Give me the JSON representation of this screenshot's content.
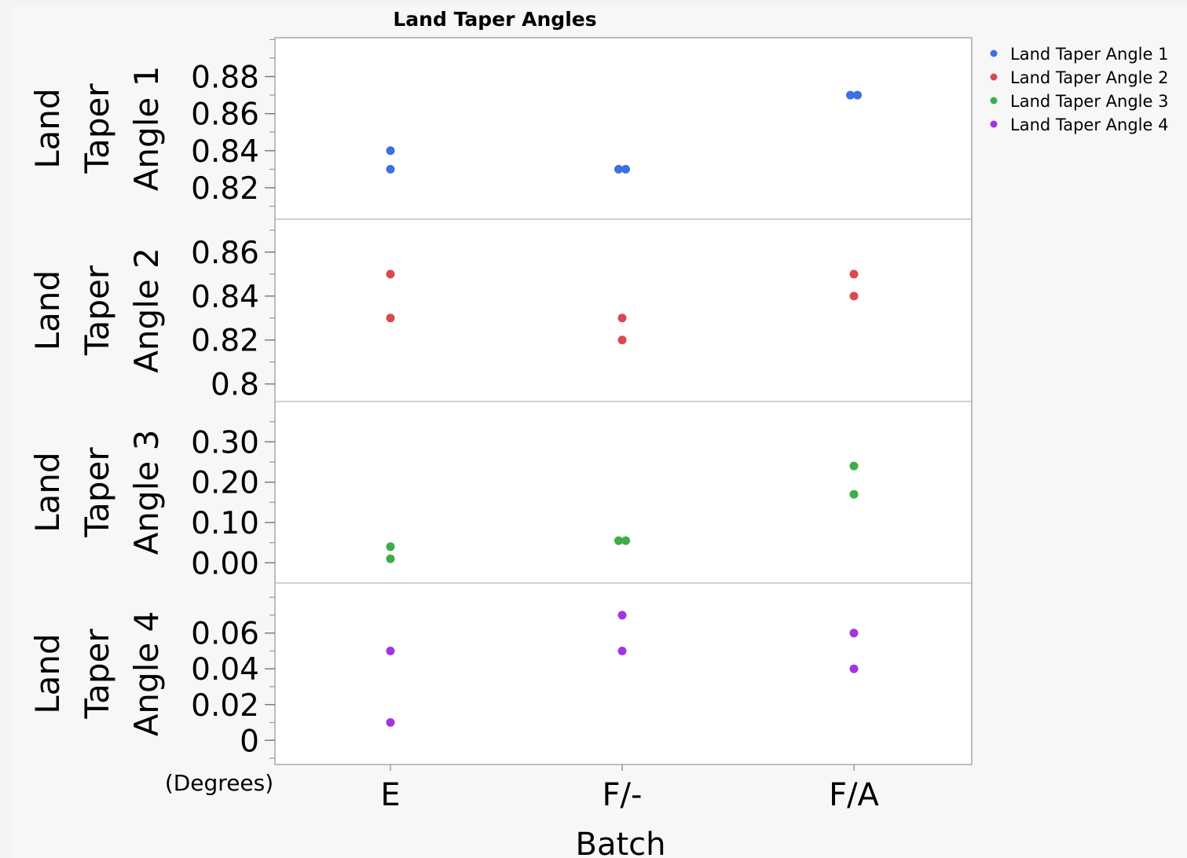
{
  "chart_data": {
    "type": "scatter",
    "title": "Land Taper Angles",
    "xlabel": "Batch",
    "categories": [
      "E",
      "F/-",
      "F/A"
    ],
    "y_unit_note": "(Degrees)",
    "grid": false,
    "legend_position": "top-right",
    "series": [
      {
        "name": "Land Taper Angle 1",
        "panel_label": [
          "Land",
          "Taper",
          "Angle 1"
        ],
        "color": "#3d70e0",
        "ylim": [
          0.803,
          0.901
        ],
        "yticks": [
          0.82,
          0.84,
          0.86,
          0.88
        ],
        "ytick_labels": [
          "0.82",
          "0.84",
          "0.86",
          "0.88"
        ],
        "points": [
          {
            "x": "E",
            "y": 0.84
          },
          {
            "x": "E",
            "y": 0.83
          },
          {
            "x": "F/-",
            "y": 0.83
          },
          {
            "x": "F/-",
            "y": 0.83
          },
          {
            "x": "F/A",
            "y": 0.87
          },
          {
            "x": "F/A",
            "y": 0.87
          }
        ]
      },
      {
        "name": "Land Taper Angle 2",
        "panel_label": [
          "Land",
          "Taper",
          "Angle 2"
        ],
        "color": "#d94a4f",
        "ylim": [
          0.792,
          0.875
        ],
        "yticks": [
          0.8,
          0.82,
          0.84,
          0.86
        ],
        "ytick_labels": [
          "0.8",
          "0.82",
          "0.84",
          "0.86"
        ],
        "points": [
          {
            "x": "E",
            "y": 0.85
          },
          {
            "x": "E",
            "y": 0.83
          },
          {
            "x": "F/-",
            "y": 0.83
          },
          {
            "x": "F/-",
            "y": 0.82
          },
          {
            "x": "F/A",
            "y": 0.85
          },
          {
            "x": "F/A",
            "y": 0.84
          }
        ]
      },
      {
        "name": "Land Taper Angle 3",
        "panel_label": [
          "Land",
          "Taper",
          "Angle 3"
        ],
        "color": "#3cae47",
        "ylim": [
          -0.05,
          0.4
        ],
        "yticks": [
          0.0,
          0.1,
          0.2,
          0.3
        ],
        "ytick_labels": [
          "0.00",
          "0.10",
          "0.20",
          "0.30"
        ],
        "points": [
          {
            "x": "E",
            "y": 0.04
          },
          {
            "x": "E",
            "y": 0.01
          },
          {
            "x": "F/-",
            "y": 0.055
          },
          {
            "x": "F/-",
            "y": 0.055
          },
          {
            "x": "F/A",
            "y": 0.24
          },
          {
            "x": "F/A",
            "y": 0.17
          }
        ]
      },
      {
        "name": "Land Taper Angle 4",
        "panel_label": [
          "Land",
          "Taper",
          "Angle 4"
        ],
        "color": "#a335e0",
        "ylim": [
          -0.0135,
          0.088
        ],
        "yticks": [
          0,
          0.02,
          0.04,
          0.06
        ],
        "ytick_labels": [
          "0",
          "0.02",
          "0.04",
          "0.06"
        ],
        "points": [
          {
            "x": "E",
            "y": 0.05
          },
          {
            "x": "E",
            "y": 0.01
          },
          {
            "x": "F/-",
            "y": 0.07
          },
          {
            "x": "F/-",
            "y": 0.05
          },
          {
            "x": "F/A",
            "y": 0.06
          },
          {
            "x": "F/A",
            "y": 0.04
          }
        ]
      }
    ]
  }
}
